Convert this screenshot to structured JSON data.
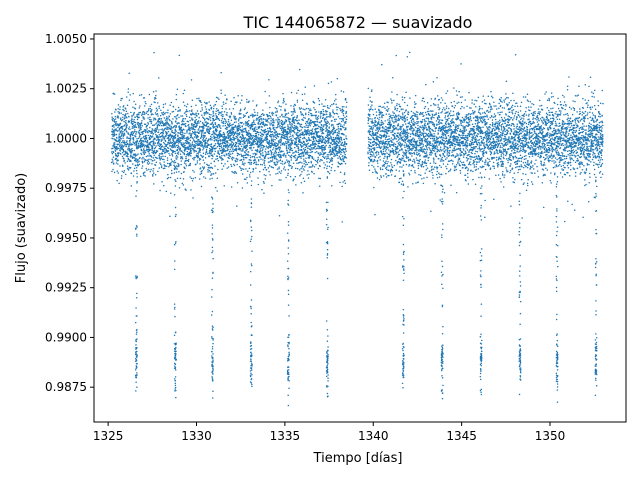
{
  "chart_data": {
    "type": "scatter",
    "title": "TIC 144065872 — suavizado",
    "xlabel": "Tiempo [días]",
    "ylabel": "Flujo (suavizado)",
    "xlim": [
      1324.2,
      1354.3
    ],
    "ylim": [
      0.98575,
      1.00525
    ],
    "x_ticks": [
      1325,
      1330,
      1335,
      1340,
      1345,
      1350
    ],
    "x_tick_labels": [
      "1325",
      "1330",
      "1335",
      "1340",
      "1345",
      "1350"
    ],
    "y_ticks": [
      0.9875,
      0.99,
      0.9925,
      0.995,
      0.9975,
      1.0,
      1.0025,
      1.005
    ],
    "y_tick_labels": [
      "0.9875",
      "0.9900",
      "0.9925",
      "0.9950",
      "0.9975",
      "1.0000",
      "1.0025",
      "1.0050"
    ],
    "grid": false,
    "marker_color": "#1f77b4",
    "baseline": 1.0,
    "scatter_std": 0.0009,
    "observation_windows": [
      [
        1325.2,
        1338.5
      ],
      [
        1339.7,
        1353.0
      ]
    ],
    "approx_points": 9000,
    "transit_times": [
      1326.6,
      1328.8,
      1330.9,
      1333.1,
      1335.2,
      1337.4,
      1341.7,
      1343.9,
      1346.1,
      1348.3,
      1350.4,
      1352.6
    ],
    "transit_min_flux": 0.9887,
    "transit_lowest_flux": 0.9865
  }
}
